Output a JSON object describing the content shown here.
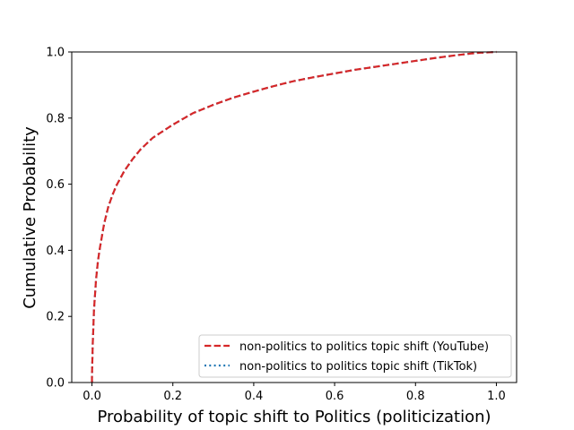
{
  "chart_data": {
    "type": "line",
    "title": "",
    "xlabel": "Probability of topic shift to Politics (politicization)",
    "ylabel": "Cumulative Probability",
    "xlim": [
      -0.05,
      1.05
    ],
    "ylim": [
      0.0,
      1.0
    ],
    "x_ticks": [
      "0.0",
      "0.2",
      "0.4",
      "0.6",
      "0.8",
      "1.0"
    ],
    "y_ticks": [
      "0.0",
      "0.2",
      "0.4",
      "0.6",
      "0.8",
      "1.0"
    ],
    "grid": false,
    "legend_position": "lower-right",
    "series": [
      {
        "name": "non-politics to politics topic shift (YouTube)",
        "color": "#d62728",
        "linestyle": "dashed",
        "x": [
          0.0,
          0.0,
          0.002,
          0.005,
          0.01,
          0.015,
          0.02,
          0.03,
          0.04,
          0.05,
          0.06,
          0.08,
          0.1,
          0.12,
          0.15,
          0.2,
          0.25,
          0.3,
          0.35,
          0.4,
          0.45,
          0.5,
          0.55,
          0.6,
          0.65,
          0.7,
          0.75,
          0.8,
          0.85,
          0.9,
          0.95,
          1.0
        ],
        "y": [
          0.0,
          0.02,
          0.12,
          0.22,
          0.31,
          0.37,
          0.41,
          0.48,
          0.53,
          0.565,
          0.595,
          0.64,
          0.675,
          0.705,
          0.74,
          0.78,
          0.815,
          0.84,
          0.862,
          0.88,
          0.897,
          0.912,
          0.924,
          0.935,
          0.946,
          0.955,
          0.964,
          0.973,
          0.982,
          0.99,
          0.997,
          1.0
        ]
      },
      {
        "name": "non-politics to politics topic shift (TikTok)",
        "color": "#1f77b4",
        "linestyle": "dotted",
        "x": [
          0.0,
          0.0,
          0.002,
          0.005,
          0.01,
          0.015,
          0.02,
          0.03,
          0.04,
          0.05,
          0.06,
          0.08,
          0.1,
          0.12,
          0.15,
          0.2,
          0.25,
          0.3,
          0.35,
          0.4,
          0.45,
          0.5,
          0.55,
          0.6,
          0.65,
          0.7,
          0.75,
          0.8,
          0.85,
          0.9,
          0.95,
          1.0
        ],
        "y": [
          0.0,
          0.02,
          0.12,
          0.22,
          0.31,
          0.37,
          0.41,
          0.48,
          0.53,
          0.565,
          0.595,
          0.64,
          0.675,
          0.705,
          0.74,
          0.78,
          0.815,
          0.84,
          0.862,
          0.88,
          0.897,
          0.912,
          0.924,
          0.935,
          0.946,
          0.955,
          0.964,
          0.973,
          0.982,
          0.99,
          0.997,
          1.0
        ]
      }
    ]
  }
}
